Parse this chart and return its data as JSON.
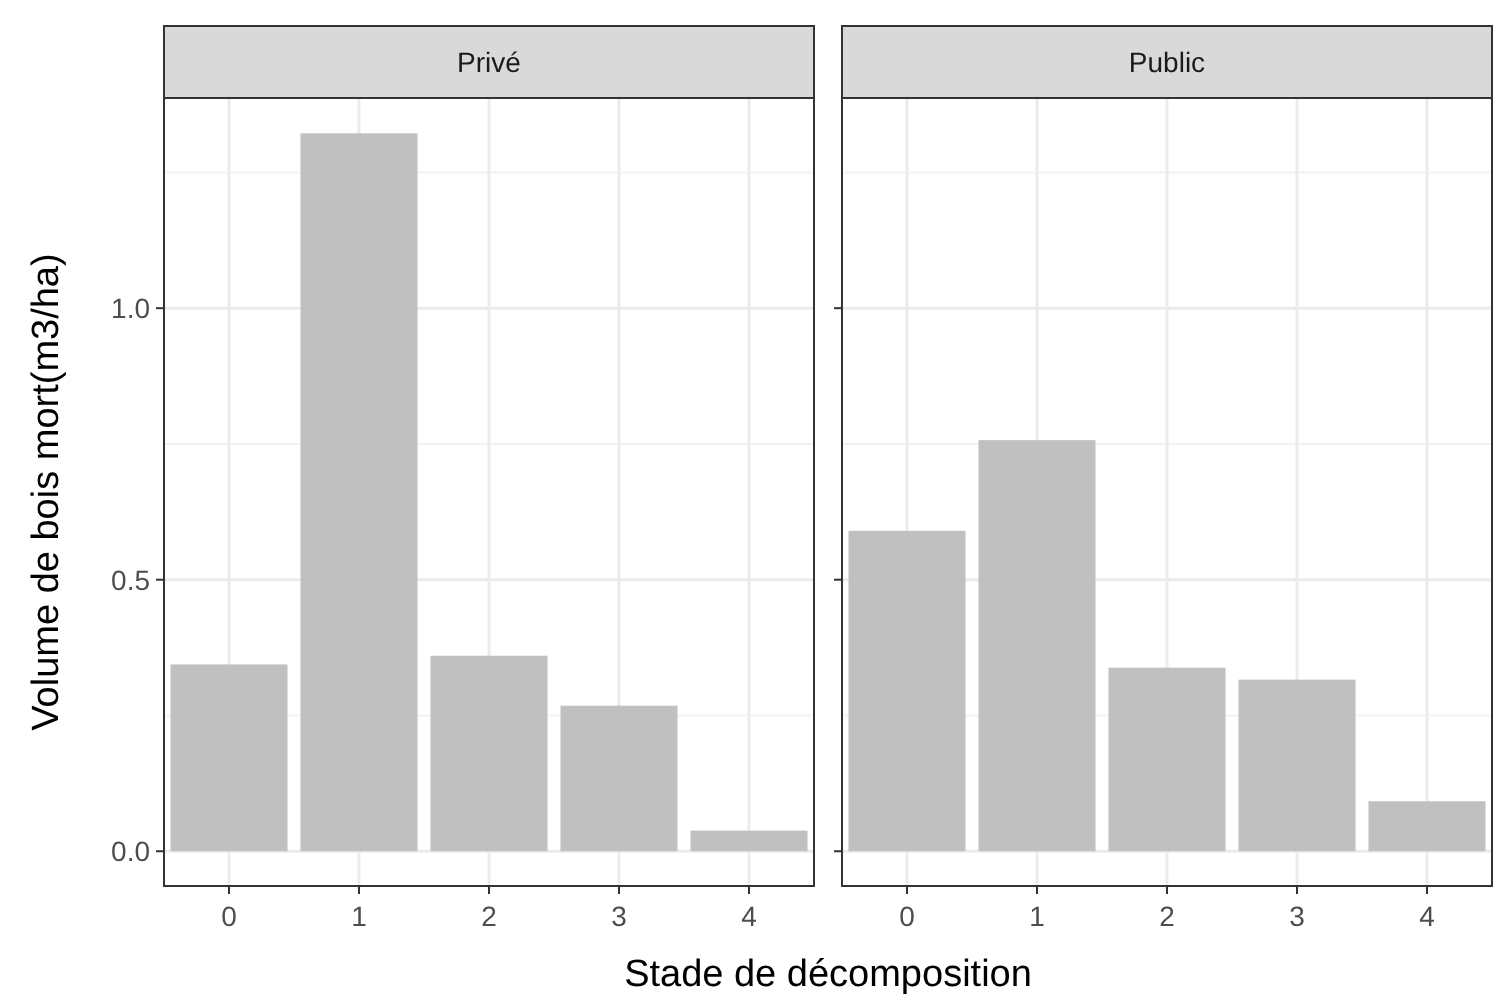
{
  "chart_data": [
    {
      "type": "bar",
      "title": "Privé",
      "xlabel": "Stade de décomposition",
      "ylabel": "Volume de bois mort(m3/ha)",
      "categories": [
        "0",
        "1",
        "2",
        "3",
        "4"
      ],
      "values": [
        0.344,
        1.322,
        0.36,
        0.268,
        0.038
      ],
      "color": "#c0c0c0",
      "ylim": [
        -0.064,
        1.387
      ],
      "yticks": [
        {
          "value": 0,
          "label": "0.0"
        },
        0.5,
        {
          "value": 1,
          "label": "1.0"
        }
      ],
      "grid": true
    },
    {
      "type": "bar",
      "title": "Public",
      "categories": [
        "0",
        "1",
        "2",
        "3",
        "4"
      ],
      "values": [
        0.59,
        0.757,
        0.338,
        0.316,
        0.092
      ],
      "color": "#c0c0c0",
      "ylim": [
        -0.064,
        1.387
      ],
      "yticks": [
        {
          "value": 0,
          "label": null
        },
        {
          "value": 0.5,
          "label": null
        },
        {
          "value": 1,
          "label": null
        }
      ],
      "grid": true,
      "tick_labels": "x"
    }
  ]
}
